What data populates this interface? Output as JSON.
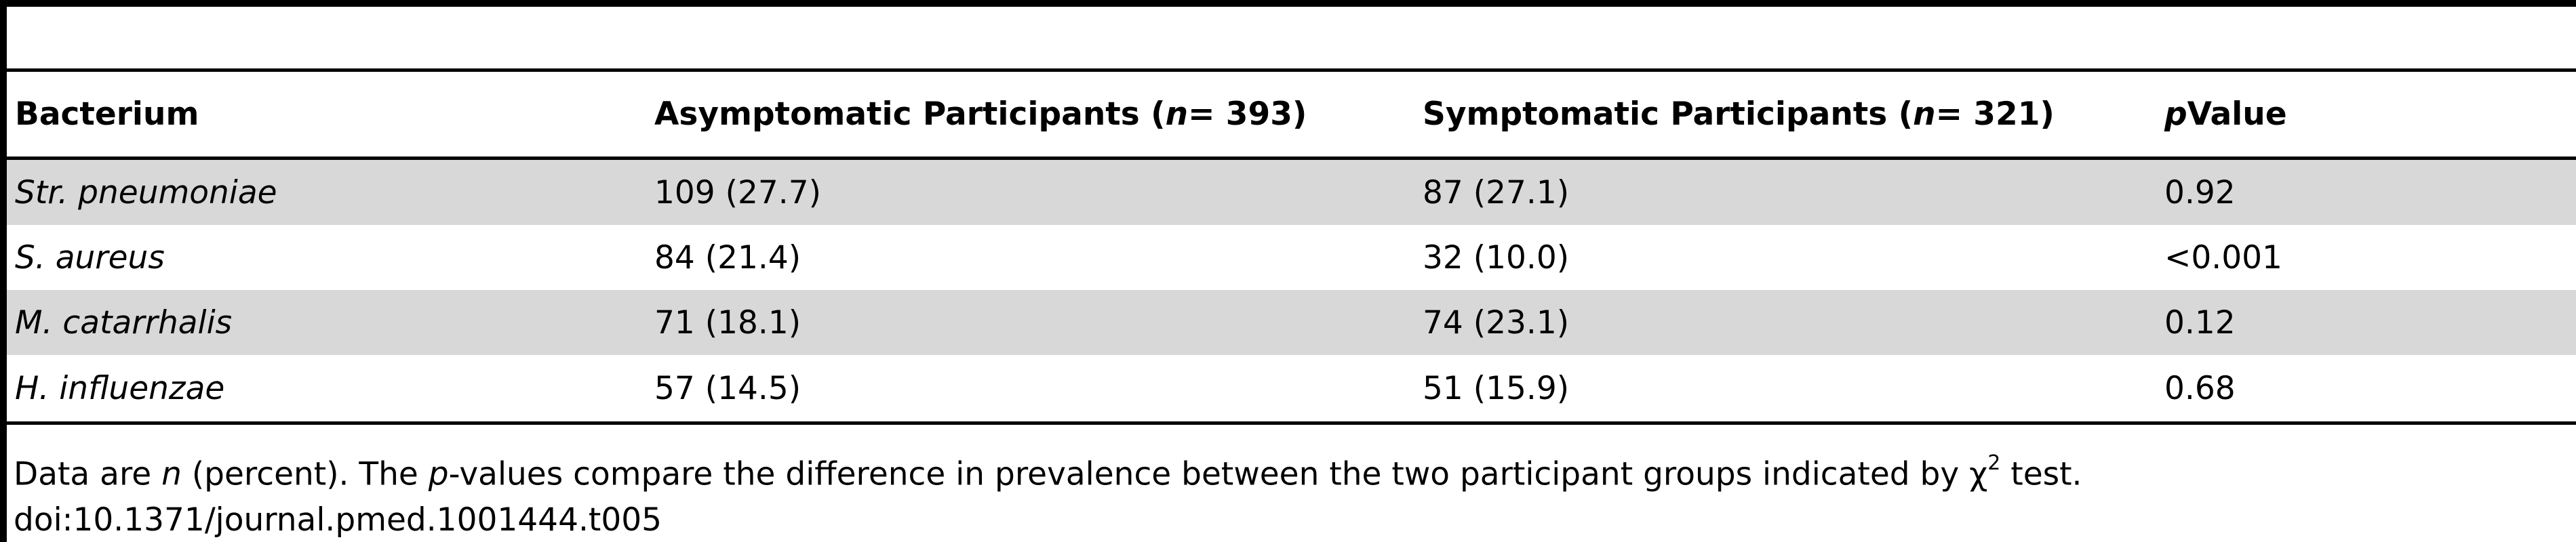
{
  "table": {
    "headers": {
      "bacterium": "Bacterium",
      "asymptomatic_prefix": "Asymptomatic Participants (",
      "asymptomatic_n": "n",
      "asymptomatic_suffix": " = 393)",
      "symptomatic_prefix": "Symptomatic Participants (",
      "symptomatic_n": "n",
      "symptomatic_suffix": " = 321)",
      "p_symbol": "p",
      "p_label": "Value"
    },
    "rows": [
      {
        "bacterium": "Str. pneumoniae",
        "asymptomatic": "109 (27.7)",
        "symptomatic": "87 (27.1)",
        "p_value": "0.92"
      },
      {
        "bacterium": "S. aureus",
        "asymptomatic": "84 (21.4)",
        "symptomatic": "32 (10.0)",
        "p_value": "<0.001"
      },
      {
        "bacterium": "M. catarrhalis",
        "asymptomatic": "71 (18.1)",
        "symptomatic": "74 (23.1)",
        "p_value": "0.12"
      },
      {
        "bacterium": "H. influenzae",
        "asymptomatic": "57 (14.5)",
        "symptomatic": "51 (15.9)",
        "p_value": "0.68"
      }
    ]
  },
  "footnote": {
    "part1": "Data are ",
    "n_symbol": "n",
    "part2": " (percent). The ",
    "p_symbol": "p",
    "part3": "-values compare the difference in prevalence between the two participant groups indicated by χ",
    "superscript": "2",
    "part4": " test.",
    "doi": "doi:10.1371/journal.pmed.1001444.t005"
  }
}
